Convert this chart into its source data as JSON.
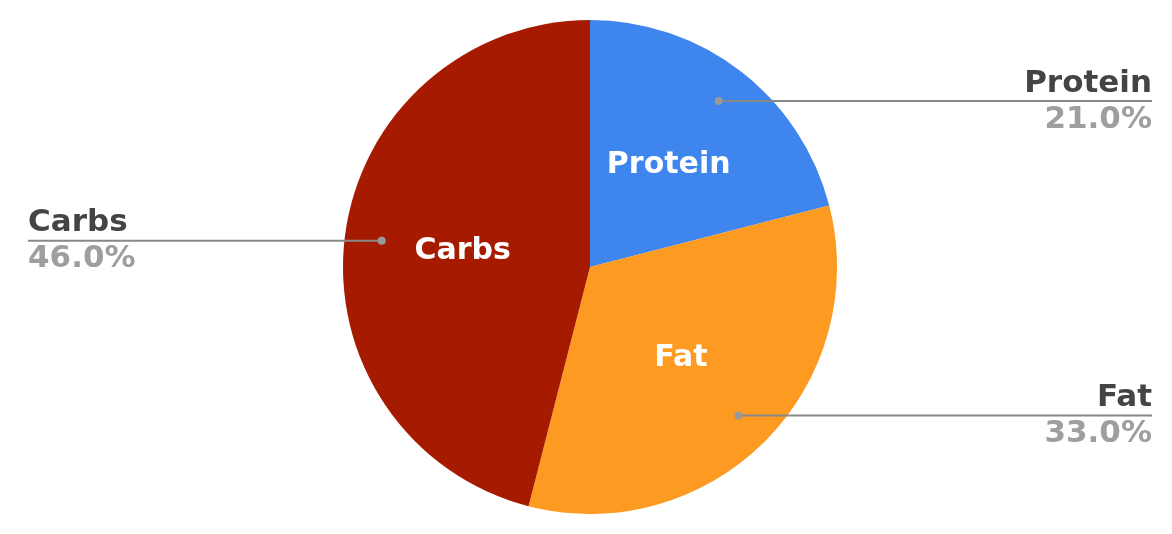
{
  "chart_data": {
    "type": "pie",
    "categories": [
      "Protein",
      "Fat",
      "Carbs"
    ],
    "values": [
      21,
      33,
      46
    ],
    "colors": [
      "#3f85ee",
      "#fd9a21",
      "#a61b00"
    ],
    "value_labels": [
      "21.0%",
      "33.0%",
      "46.0%"
    ]
  }
}
